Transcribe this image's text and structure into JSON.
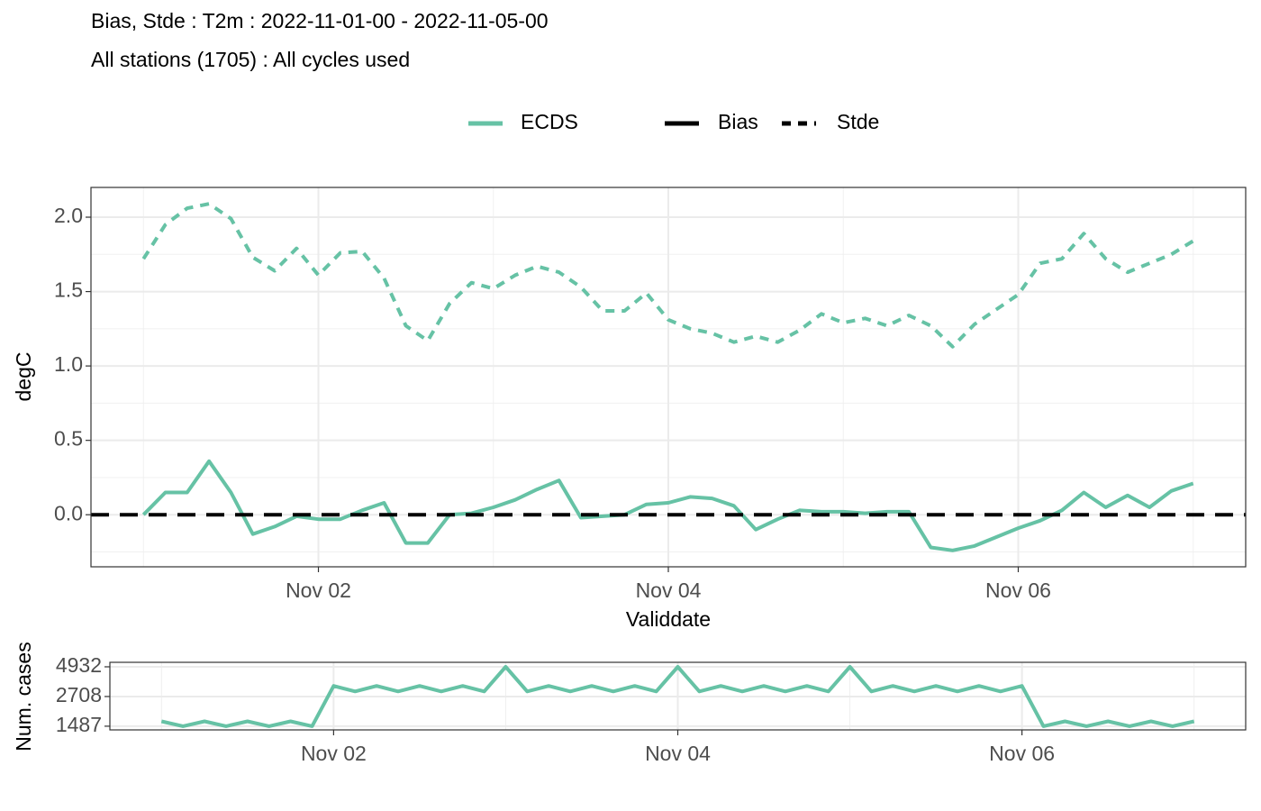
{
  "chart_data": [
    {
      "type": "line",
      "title": "Bias, Stde : T2m : 2022-11-01-00 - 2022-11-05-00",
      "subtitle": "All stations (1705) : All cycles used",
      "xlabel": "Validdate",
      "ylabel": "degC",
      "legend": "top",
      "color_legend": {
        "name": "ECDS",
        "color": "#66c2a5"
      },
      "hline": 0,
      "grid": true,
      "xlim": [
        0.7,
        7.3
      ],
      "xticks": [
        {
          "value": 2,
          "label": "Nov 02"
        },
        {
          "value": 4,
          "label": "Nov 04"
        },
        {
          "value": 6,
          "label": "Nov 06"
        }
      ],
      "ylim": [
        -0.35,
        2.2
      ],
      "yticks": [
        {
          "value": 0,
          "label": "0.0"
        },
        0.5,
        {
          "value": 1,
          "label": "1.0"
        },
        1.5,
        {
          "value": 2,
          "label": "2.0"
        }
      ],
      "x": [
        1,
        1.125,
        1.25,
        1.375,
        1.5,
        1.625,
        1.75,
        1.875,
        2,
        2.125,
        2.25,
        2.375,
        2.5,
        2.625,
        2.75,
        2.875,
        3,
        3.125,
        3.25,
        3.375,
        3.5,
        3.625,
        3.75,
        3.875,
        4,
        4.125,
        4.25,
        4.375,
        4.5,
        4.625,
        4.75,
        4.875,
        5,
        5.125,
        5.25,
        5.375,
        5.5,
        5.625,
        5.75,
        5.875,
        6,
        6.125,
        6.25,
        6.375,
        6.5,
        6.625,
        6.75,
        6.875,
        7
      ],
      "series": [
        {
          "name": "Bias",
          "linestyle": "solid",
          "values": [
            0.0,
            0.15,
            0.15,
            0.36,
            0.15,
            -0.13,
            -0.08,
            -0.01,
            -0.03,
            -0.03,
            0.03,
            0.08,
            -0.19,
            -0.19,
            0.0,
            0.01,
            0.05,
            0.1,
            0.17,
            0.23,
            -0.02,
            -0.01,
            0.0,
            0.07,
            0.08,
            0.12,
            0.11,
            0.06,
            -0.1,
            -0.03,
            0.03,
            0.02,
            0.02,
            0.01,
            0.02,
            0.02,
            -0.22,
            -0.24,
            -0.21,
            -0.15,
            -0.09,
            -0.04,
            0.03,
            0.15,
            0.05,
            0.13,
            0.05,
            0.16,
            0.21
          ]
        },
        {
          "name": "Stde",
          "linestyle": "dashed",
          "values": [
            1.72,
            1.95,
            2.06,
            2.09,
            1.99,
            1.73,
            1.64,
            1.79,
            1.61,
            1.76,
            1.77,
            1.59,
            1.27,
            1.17,
            1.42,
            1.56,
            1.52,
            1.61,
            1.67,
            1.63,
            1.53,
            1.37,
            1.37,
            1.49,
            1.31,
            1.25,
            1.22,
            1.16,
            1.2,
            1.16,
            1.24,
            1.35,
            1.29,
            1.32,
            1.27,
            1.34,
            1.27,
            1.13,
            1.28,
            1.38,
            1.48,
            1.69,
            1.72,
            1.89,
            1.72,
            1.63,
            1.69,
            1.75,
            1.84
          ]
        }
      ]
    },
    {
      "type": "line",
      "ylabel": "Num. cases",
      "log_y": true,
      "grid": true,
      "color": "#66c2a5",
      "xlim": [
        0.7,
        7.3
      ],
      "xticks": [
        {
          "value": 2,
          "label": "Nov 02"
        },
        {
          "value": 4,
          "label": "Nov 04"
        },
        {
          "value": 6,
          "label": "Nov 06"
        }
      ],
      "ylim": [
        1380,
        5400
      ],
      "yticks": [
        1487,
        2708,
        4932
      ],
      "x": [
        1,
        1.125,
        1.25,
        1.375,
        1.5,
        1.625,
        1.75,
        1.875,
        2,
        2.125,
        2.25,
        2.375,
        2.5,
        2.625,
        2.75,
        2.875,
        3,
        3.125,
        3.25,
        3.375,
        3.5,
        3.625,
        3.75,
        3.875,
        4,
        4.125,
        4.25,
        4.375,
        4.5,
        4.625,
        4.75,
        4.875,
        5,
        5.125,
        5.25,
        5.375,
        5.5,
        5.625,
        5.75,
        5.875,
        6,
        6.125,
        6.25,
        6.375,
        6.5,
        6.625,
        6.75,
        6.875,
        7
      ],
      "values": [
        1640,
        1487,
        1640,
        1487,
        1640,
        1487,
        1640,
        1487,
        3350,
        3000,
        3350,
        3000,
        3350,
        3000,
        3350,
        3000,
        4932,
        3000,
        3350,
        3000,
        3350,
        3000,
        3350,
        3000,
        4932,
        3000,
        3350,
        3000,
        3350,
        3000,
        3350,
        3000,
        4932,
        3000,
        3350,
        3000,
        3350,
        3000,
        3350,
        3000,
        3350,
        1487,
        1640,
        1487,
        1640,
        1487,
        1640,
        1487,
        1640
      ]
    }
  ]
}
